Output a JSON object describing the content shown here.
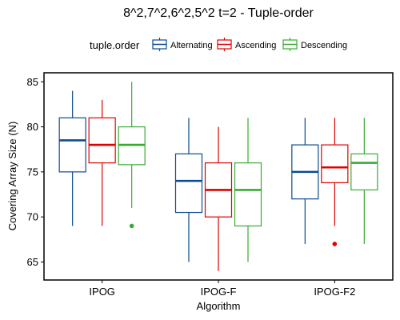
{
  "chart_data": {
    "type": "boxplot",
    "title": "8^2,7^2,6^2,5^2 t=2 - Tuple-order",
    "xlabel": "Algorithm",
    "ylabel": "Covering Array Size (N)",
    "ylim": [
      63,
      86
    ],
    "yticks": [
      65,
      70,
      75,
      80,
      85
    ],
    "categories": [
      "IPOG",
      "IPOG-F",
      "IPOG-F2"
    ],
    "legend": {
      "title": "tuple.order",
      "position": "top"
    },
    "series": [
      {
        "name": "Alternating",
        "color": "#0b4b8e",
        "boxes": [
          {
            "category": "IPOG",
            "min": 69,
            "q1": 75,
            "median": 78.5,
            "q3": 81,
            "max": 84,
            "outliers": []
          },
          {
            "category": "IPOG-F",
            "min": 65,
            "q1": 70.5,
            "median": 74,
            "q3": 77,
            "max": 81,
            "outliers": []
          },
          {
            "category": "IPOG-F2",
            "min": 67,
            "q1": 72,
            "median": 75,
            "q3": 78,
            "max": 81,
            "outliers": []
          }
        ]
      },
      {
        "name": "Ascending",
        "color": "#e00000",
        "boxes": [
          {
            "category": "IPOG",
            "min": 69,
            "q1": 76,
            "median": 78,
            "q3": 81,
            "max": 83,
            "outliers": []
          },
          {
            "category": "IPOG-F",
            "min": 64,
            "q1": 70,
            "median": 73,
            "q3": 76,
            "max": 80,
            "outliers": []
          },
          {
            "category": "IPOG-F2",
            "min": 69,
            "q1": 73.8,
            "median": 75.5,
            "q3": 78,
            "max": 81,
            "outliers": [
              67
            ]
          }
        ]
      },
      {
        "name": "Descending",
        "color": "#3aaa35",
        "boxes": [
          {
            "category": "IPOG",
            "min": 71,
            "q1": 75.8,
            "median": 78,
            "q3": 80,
            "max": 85,
            "outliers": [
              69
            ]
          },
          {
            "category": "IPOG-F",
            "min": 65,
            "q1": 69,
            "median": 73,
            "q3": 76,
            "max": 81,
            "outliers": []
          },
          {
            "category": "IPOG-F2",
            "min": 67,
            "q1": 73,
            "median": 76,
            "q3": 77,
            "max": 81,
            "outliers": []
          }
        ]
      }
    ]
  }
}
